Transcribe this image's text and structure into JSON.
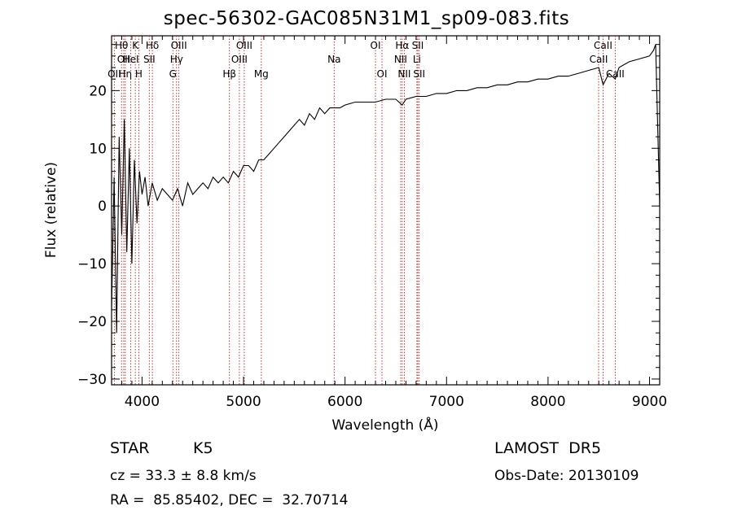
{
  "title": "spec-56302-GAC085N31M1_sp09-083.fits",
  "info": {
    "class": "STAR",
    "subclass": "K5",
    "survey": "LAMOST  DR5",
    "cz": "cz = 33.3 ± 8.8 km/s",
    "obs_date": "Obs-Date: 20130109",
    "coords": "RA =  85.85402, DEC =  32.70714"
  },
  "colors": {
    "spectrum": "#000000",
    "line_marker": "#b22222",
    "axes": "#000000"
  },
  "chart_data": {
    "type": "line",
    "title": "spec-56302-GAC085N31M1_sp09-083.fits",
    "xlabel": "Wavelength (Å)",
    "ylabel": "Flux (relative)",
    "xlim": [
      3700,
      9100
    ],
    "ylim": [
      -31,
      29.5
    ],
    "xticks": [
      4000,
      5000,
      6000,
      7000,
      8000,
      9000
    ],
    "xtick_labels": [
      "4000",
      "5000",
      "6000",
      "7000",
      "8000",
      "9000"
    ],
    "yticks": [
      -30,
      -20,
      -10,
      0,
      10,
      20
    ],
    "ytick_labels": [
      "−30",
      "−20",
      "−10",
      "0",
      "10",
      "20"
    ],
    "grid": false,
    "series": [
      {
        "x": [
          3700,
          3725,
          3750,
          3775,
          3800,
          3825,
          3850,
          3875,
          3900,
          3925,
          3950,
          3975,
          4000,
          4030,
          4060,
          4100,
          4150,
          4200,
          4250,
          4300,
          4350,
          4400,
          4450,
          4500,
          4550,
          4600,
          4650,
          4700,
          4750,
          4800,
          4850,
          4900,
          4950,
          5000,
          5050,
          5100,
          5150,
          5200,
          5250,
          5300,
          5350,
          5400,
          5450,
          5500,
          5550,
          5600,
          5650,
          5700,
          5750,
          5800,
          5850,
          5900,
          5950,
          6000,
          6100,
          6200,
          6300,
          6400,
          6500,
          6563,
          6600,
          6700,
          6800,
          6900,
          7000,
          7100,
          7200,
          7300,
          7400,
          7500,
          7600,
          7700,
          7800,
          7900,
          8000,
          8100,
          8200,
          8300,
          8400,
          8500,
          8542,
          8600,
          8662,
          8700,
          8800,
          8900,
          9000,
          9040,
          9060,
          9080,
          9100
        ],
        "y": [
          -18,
          5,
          -22,
          12,
          -5,
          15,
          -8,
          10,
          -10,
          8,
          -3,
          6,
          2,
          5,
          0,
          4,
          1,
          3,
          2,
          1,
          3,
          0,
          4,
          2,
          3,
          4,
          3,
          5,
          4,
          5,
          4,
          6,
          5,
          7,
          7,
          6,
          8,
          8,
          9,
          10,
          11,
          12,
          13,
          14,
          15,
          14,
          16,
          15,
          17,
          16,
          17,
          17,
          17,
          17.5,
          18,
          18,
          18,
          18.5,
          18.5,
          17.5,
          18.5,
          19,
          19,
          19.5,
          19.5,
          20,
          20,
          20.5,
          20.5,
          21,
          21,
          21.5,
          21.5,
          22,
          22,
          22.5,
          22.5,
          23,
          23.5,
          24,
          21,
          23,
          22,
          24,
          25,
          25.5,
          26,
          27,
          28,
          14,
          0
        ]
      }
    ],
    "line_markers": [
      {
        "wavelength": 3727,
        "label": "OII",
        "row": 3
      },
      {
        "wavelength": 3798,
        "label": "Hθ",
        "row": 1
      },
      {
        "wavelength": 3820,
        "label": "OII",
        "row": 2
      },
      {
        "wavelength": 3835,
        "label": "Hη",
        "row": 3
      },
      {
        "wavelength": 3889,
        "label": "HeI",
        "row": 2
      },
      {
        "wavelength": 3934,
        "label": "K",
        "row": 1
      },
      {
        "wavelength": 3968,
        "label": "H",
        "row": 3
      },
      {
        "wavelength": 4072,
        "label": "SII",
        "row": 2
      },
      {
        "wavelength": 4102,
        "label": "Hδ",
        "row": 1
      },
      {
        "wavelength": 4304,
        "label": "G",
        "row": 3
      },
      {
        "wavelength": 4340,
        "label": "Hγ",
        "row": 2
      },
      {
        "wavelength": 4363,
        "label": "OIII",
        "row": 1
      },
      {
        "wavelength": 4861,
        "label": "Hβ",
        "row": 3
      },
      {
        "wavelength": 4959,
        "label": "OIII",
        "row": 2
      },
      {
        "wavelength": 5007,
        "label": "OIII",
        "row": 1
      },
      {
        "wavelength": 5175,
        "label": "Mg",
        "row": 3
      },
      {
        "wavelength": 5893,
        "label": "Na",
        "row": 2
      },
      {
        "wavelength": 6300,
        "label": "OI",
        "row": 1
      },
      {
        "wavelength": 6364,
        "label": "OI",
        "row": 3
      },
      {
        "wavelength": 6548,
        "label": "NII",
        "row": 2
      },
      {
        "wavelength": 6563,
        "label": "Hα",
        "row": 1
      },
      {
        "wavelength": 6584,
        "label": "NII",
        "row": 3
      },
      {
        "wavelength": 6708,
        "label": "Li",
        "row": 2
      },
      {
        "wavelength": 6717,
        "label": "SII",
        "row": 1
      },
      {
        "wavelength": 6731,
        "label": "SII",
        "row": 3
      },
      {
        "wavelength": 8498,
        "label": "CaII",
        "row": 2
      },
      {
        "wavelength": 8542,
        "label": "CaII",
        "row": 1
      },
      {
        "wavelength": 8662,
        "label": "CaII",
        "row": 3
      }
    ]
  }
}
